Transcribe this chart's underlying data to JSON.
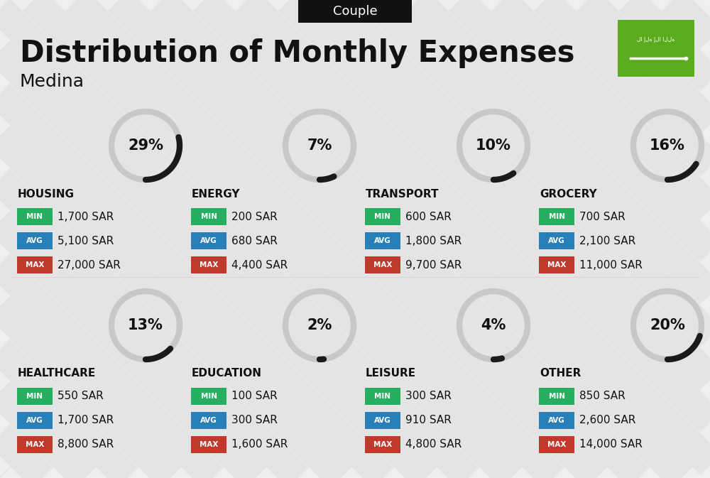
{
  "title": "Distribution of Monthly Expenses",
  "subtitle": "Medina",
  "header_label": "Couple",
  "bg_color": "#efefef",
  "categories": [
    {
      "name": "HOUSING",
      "pct": 29,
      "min": "1,700 SAR",
      "avg": "5,100 SAR",
      "max": "27,000 SAR",
      "col": 0,
      "row": 0
    },
    {
      "name": "ENERGY",
      "pct": 7,
      "min": "200 SAR",
      "avg": "680 SAR",
      "max": "4,400 SAR",
      "col": 1,
      "row": 0
    },
    {
      "name": "TRANSPORT",
      "pct": 10,
      "min": "600 SAR",
      "avg": "1,800 SAR",
      "max": "9,700 SAR",
      "col": 2,
      "row": 0
    },
    {
      "name": "GROCERY",
      "pct": 16,
      "min": "700 SAR",
      "avg": "2,100 SAR",
      "max": "11,000 SAR",
      "col": 3,
      "row": 0
    },
    {
      "name": "HEALTHCARE",
      "pct": 13,
      "min": "550 SAR",
      "avg": "1,700 SAR",
      "max": "8,800 SAR",
      "col": 0,
      "row": 1
    },
    {
      "name": "EDUCATION",
      "pct": 2,
      "min": "100 SAR",
      "avg": "300 SAR",
      "max": "1,600 SAR",
      "col": 1,
      "row": 1
    },
    {
      "name": "LEISURE",
      "pct": 4,
      "min": "300 SAR",
      "avg": "910 SAR",
      "max": "4,800 SAR",
      "col": 2,
      "row": 1
    },
    {
      "name": "OTHER",
      "pct": 20,
      "min": "850 SAR",
      "avg": "2,600 SAR",
      "max": "14,000 SAR",
      "col": 3,
      "row": 1
    }
  ],
  "min_color": "#27ae60",
  "avg_color": "#2980b9",
  "max_color": "#c0392b",
  "arc_dark": "#1a1a1a",
  "arc_light": "#c8c8c8",
  "text_dark": "#111111",
  "flag_green": "#5aac1e",
  "header_bg": "#111111",
  "header_fg": "#ffffff",
  "stripe_color": "#e0e0e0",
  "icon_unicode": {
    "HOUSING": "🏙",
    "ENERGY": "⚡",
    "TRANSPORT": "🚌",
    "GROCERY": "🛒",
    "HEALTHCARE": "💚",
    "EDUCATION": "🎓",
    "LEISURE": "🛍",
    "OTHER": "👜"
  }
}
